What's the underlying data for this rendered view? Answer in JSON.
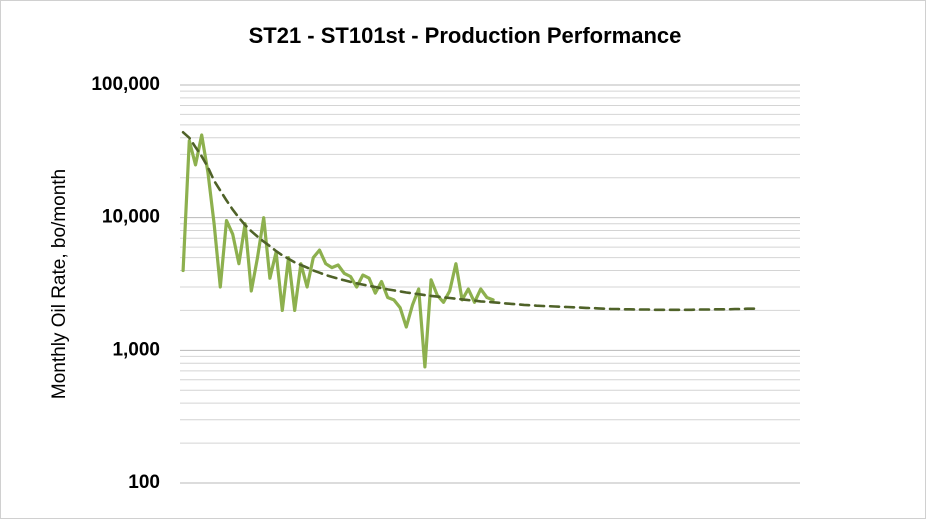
{
  "chart_data": {
    "type": "line",
    "title": "ST21 - ST101st - Production Performance",
    "y_label": "Monthly Oil Rate, bo/month",
    "log_scale_y": true,
    "grid": true,
    "ylim": [
      100,
      100000
    ],
    "yticks": [
      100,
      {
        "value": 1000,
        "label": "1,000"
      },
      {
        "value": 10000,
        "label": "10,000"
      },
      {
        "value": 100000,
        "label": "100,000"
      }
    ],
    "minor_yticks": [
      200,
      300,
      400,
      500,
      600,
      700,
      800,
      900,
      2000,
      3000,
      4000,
      5000,
      6000,
      7000,
      8000,
      9000,
      20000,
      30000,
      40000,
      50000,
      60000,
      70000,
      80000,
      90000
    ],
    "categories": [
      null,
      null,
      null,
      null,
      null,
      null,
      null,
      null,
      null,
      null,
      null,
      null,
      null,
      null,
      null,
      null,
      null,
      null,
      null,
      null,
      null,
      null,
      null,
      null,
      null,
      null,
      null,
      null,
      null,
      null,
      null,
      null,
      null,
      null,
      null,
      null,
      null,
      null,
      null,
      null,
      null,
      null,
      null,
      null,
      null,
      null,
      null,
      null,
      null,
      null,
      null,
      null,
      null,
      null,
      null,
      null,
      null,
      null,
      null,
      null,
      null,
      null,
      null,
      null,
      null,
      null,
      null,
      null,
      null,
      null,
      null,
      null,
      null,
      null,
      null,
      null,
      null,
      null,
      null,
      null,
      null,
      null,
      null,
      null,
      null,
      null,
      null,
      null,
      null,
      null,
      null,
      null,
      null,
      null,
      null,
      null,
      null,
      null,
      null,
      null
    ],
    "series": [
      {
        "color": "#8db04e",
        "dash": false,
        "values": [
          4000,
          38000,
          25000,
          42000,
          22000,
          9000,
          3000,
          9500,
          7500,
          4500,
          9000,
          2800,
          5000,
          10000,
          3500,
          5500,
          2000,
          5000,
          2000,
          4500,
          3000,
          5000,
          5700,
          4500,
          4200,
          4400,
          3800,
          3600,
          3000,
          3700,
          3500,
          2700,
          3300,
          2500,
          2400,
          2100,
          1500,
          2200,
          2900,
          750,
          3400,
          2600,
          2300,
          2800,
          4500,
          2400,
          2900,
          2300,
          2900,
          2500,
          2400,
          null,
          null,
          null,
          null,
          null,
          null,
          null,
          null,
          null,
          null,
          null,
          null,
          null,
          null,
          null,
          null,
          null,
          null,
          null,
          null,
          null,
          null,
          null,
          null,
          null,
          null,
          null,
          null,
          null,
          null,
          null,
          null,
          null,
          null,
          null,
          null,
          null,
          null,
          null,
          null,
          null,
          null,
          null,
          null,
          null,
          null,
          null,
          null,
          null
        ]
      },
      {
        "color": "#4f6228",
        "dash": true,
        "values": [
          44000,
          40000,
          34000,
          29000,
          24000,
          19000,
          16000,
          13500,
          11500,
          10000,
          8800,
          7900,
          7200,
          6600,
          6100,
          5600,
          5200,
          4900,
          4600,
          4400,
          4200,
          4000,
          3850,
          3700,
          3580,
          3470,
          3370,
          3280,
          3200,
          3130,
          3060,
          3000,
          2940,
          2880,
          2830,
          2780,
          2730,
          2690,
          2650,
          2610,
          2570,
          2540,
          2510,
          2480,
          2450,
          2420,
          2390,
          2370,
          2340,
          2320,
          2300,
          2280,
          2260,
          2240,
          2220,
          2200,
          2190,
          2170,
          2160,
          2150,
          2140,
          2130,
          2120,
          2110,
          2100,
          2090,
          2080,
          2070,
          2060,
          2050,
          2050,
          2040,
          2040,
          2030,
          2030,
          2030,
          2020,
          2020,
          2020,
          2020,
          2020,
          2020,
          2020,
          2030,
          2030,
          2030,
          2040,
          2040,
          2040,
          2050,
          2050,
          2060,
          2060,
          2070,
          null,
          null,
          null,
          null,
          null,
          null
        ]
      }
    ]
  }
}
